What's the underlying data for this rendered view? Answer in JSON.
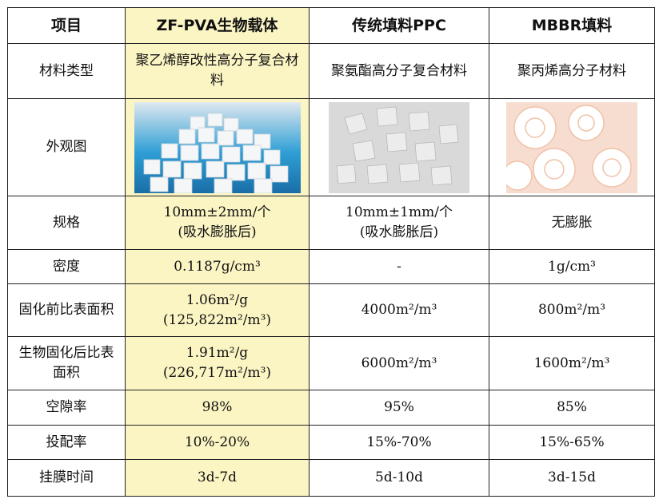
{
  "table": {
    "headers": [
      "项目",
      "ZF-PVA生物载体",
      "传统填料PPC",
      "MBBR填料"
    ],
    "rows": {
      "material": {
        "label": "材料类型",
        "zf": "聚乙烯醇改性高分子复合材料",
        "ppc": "聚氨酯高分子复合材料",
        "mbbr": "聚丙烯高分子材料"
      },
      "appearance": {
        "label": "外观图"
      },
      "spec": {
        "label": "规格",
        "zf": "10mm±2mm/个\n(吸水膨胀后)",
        "ppc": "10mm±1mm/个\n(吸水膨胀后)",
        "mbbr": "无膨胀"
      },
      "density": {
        "label": "密度",
        "zf": "0.1187g/cm³",
        "ppc": "-",
        "mbbr": "1g/cm³"
      },
      "area_before": {
        "label": "固化前比表面积",
        "zf": "1.06m²/g\n(125,822m²/m³)",
        "ppc": "4000m²/m³",
        "mbbr": "800m²/m³"
      },
      "area_after": {
        "label": "生物固化后比表面积",
        "zf": "1.91m²/g\n(226,717m²/m³)",
        "ppc": "6000m²/m³",
        "mbbr": "1600m²/m³"
      },
      "porosity": {
        "label": "空隙率",
        "zf": "98%",
        "ppc": "95%",
        "mbbr": "85%"
      },
      "dosage": {
        "label": "投配率",
        "zf": "10%-20%",
        "ppc": "15%-70%",
        "mbbr": "15%-65%"
      },
      "biofilm": {
        "label": "挂膜时间",
        "zf": "3d-7d",
        "ppc": "5d-10d",
        "mbbr": "3d-15d"
      }
    }
  },
  "colors": {
    "highlight": "#fbf5c4",
    "border": "#222222"
  }
}
